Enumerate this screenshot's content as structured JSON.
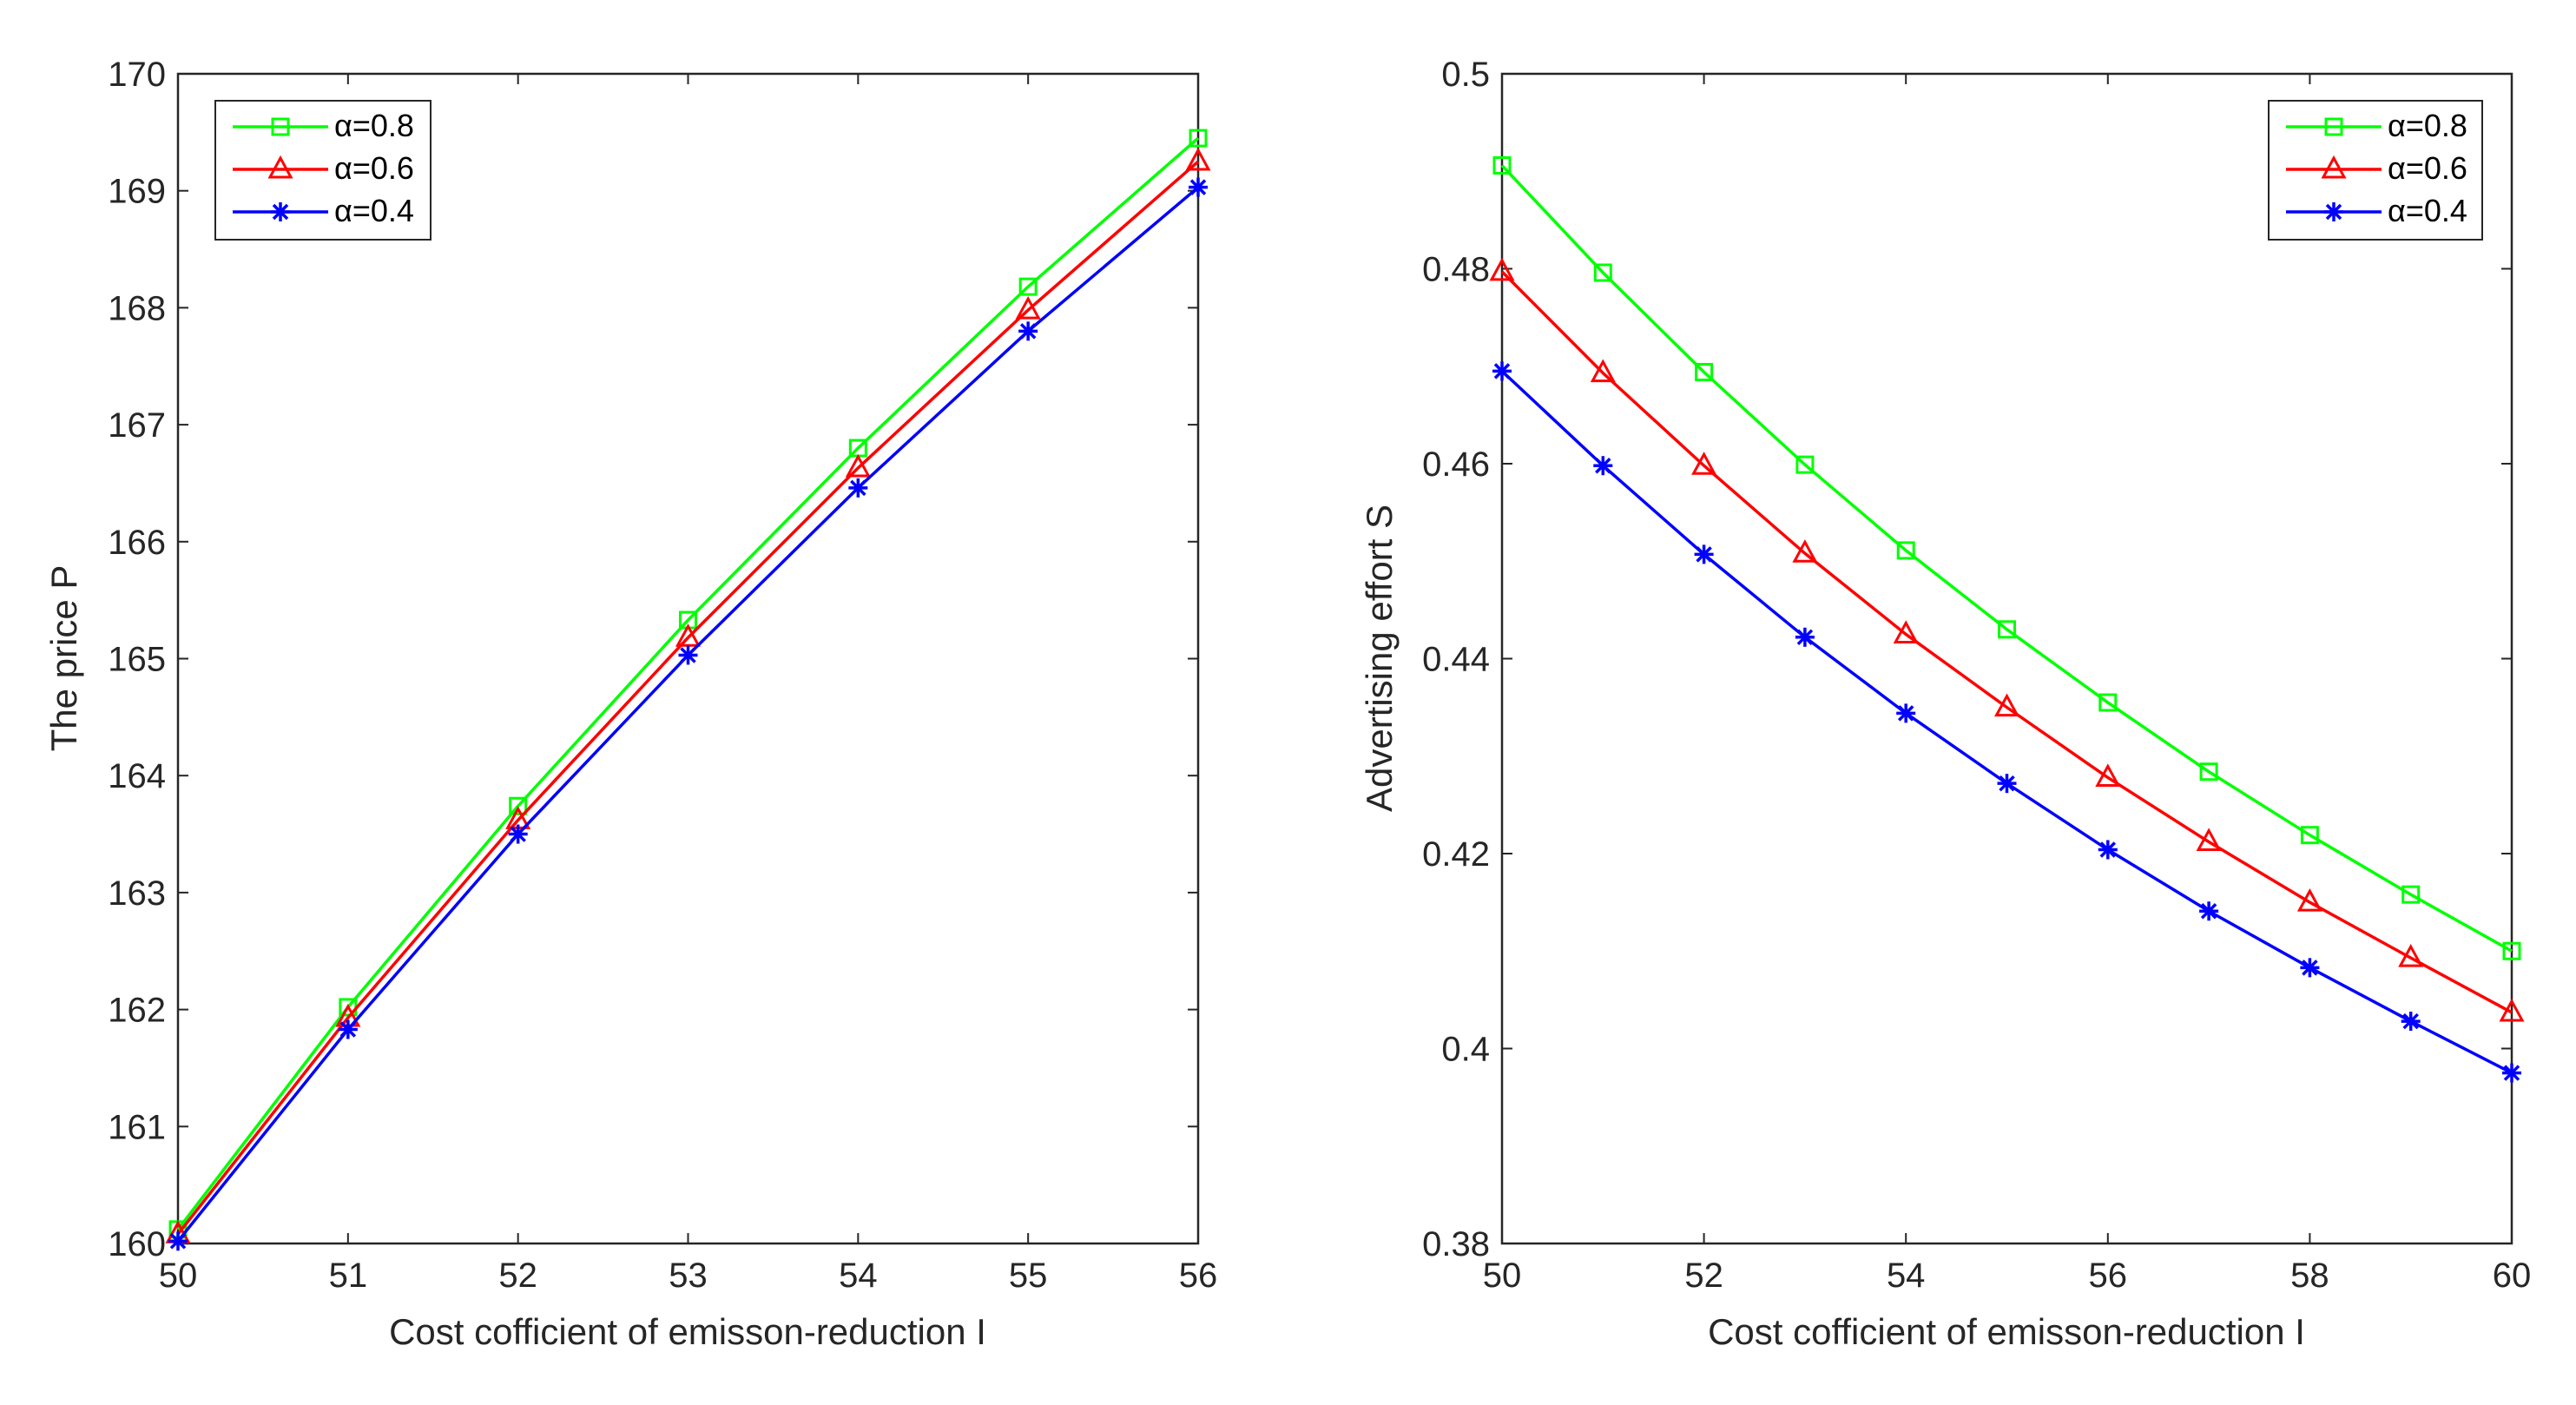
{
  "chart_data": [
    {
      "type": "line",
      "title": "",
      "xlabel": "Cost cofficient of emisson-reduction I",
      "ylabel": "The price P",
      "xlim": [
        50,
        56
      ],
      "ylim": [
        160,
        170
      ],
      "x": [
        50,
        51,
        52,
        53,
        54,
        55,
        56
      ],
      "xticks": [
        "50",
        "51",
        "52",
        "53",
        "54",
        "55",
        "56"
      ],
      "yticks": [
        "160",
        "161",
        "162",
        "163",
        "164",
        "165",
        "166",
        "167",
        "168",
        "169",
        "170"
      ],
      "legend_position": "top-left",
      "series": [
        {
          "name": "α=0.8",
          "values": [
            160.12,
            162.02,
            163.74,
            165.33,
            166.8,
            168.18,
            169.45
          ]
        },
        {
          "name": "α=0.6",
          "values": [
            160.08,
            161.93,
            163.62,
            165.18,
            166.63,
            167.98,
            169.25
          ]
        },
        {
          "name": "α=0.4",
          "values": [
            160.02,
            161.83,
            163.5,
            165.03,
            166.46,
            167.8,
            169.03
          ]
        }
      ]
    },
    {
      "type": "line",
      "title": "",
      "xlabel": "Cost cofficient of emisson-reduction I",
      "ylabel": "Advertising effort S",
      "xlim": [
        50,
        60
      ],
      "ylim": [
        0.38,
        0.5
      ],
      "x": [
        50,
        51,
        52,
        53,
        54,
        55,
        56,
        57,
        58,
        59,
        60
      ],
      "xticks": [
        "50",
        "52",
        "54",
        "56",
        "58",
        "60"
      ],
      "yticks": [
        "0.38",
        "0.4",
        "0.42",
        "0.44",
        "0.46",
        "0.48",
        "0.5"
      ],
      "legend_position": "top-right",
      "series": [
        {
          "name": "α=0.8",
          "values": [
            0.4906,
            0.4796,
            0.4694,
            0.4599,
            0.4511,
            0.443,
            0.4355,
            0.4284,
            0.4219,
            0.4158,
            0.41
          ]
        },
        {
          "name": "α=0.6",
          "values": [
            0.4797,
            0.4693,
            0.4598,
            0.4508,
            0.4425,
            0.435,
            0.4278,
            0.4212,
            0.415,
            0.4093,
            0.4037
          ]
        },
        {
          "name": "α=0.4",
          "values": [
            0.4695,
            0.4598,
            0.4507,
            0.4422,
            0.4344,
            0.4272,
            0.4204,
            0.4141,
            0.4083,
            0.4028,
            0.3975
          ]
        }
      ]
    }
  ],
  "series_styles": [
    {
      "color": "#00ff00",
      "marker": "square"
    },
    {
      "color": "#ff0000",
      "marker": "triangle"
    },
    {
      "color": "#0000ff",
      "marker": "asterisk"
    }
  ]
}
